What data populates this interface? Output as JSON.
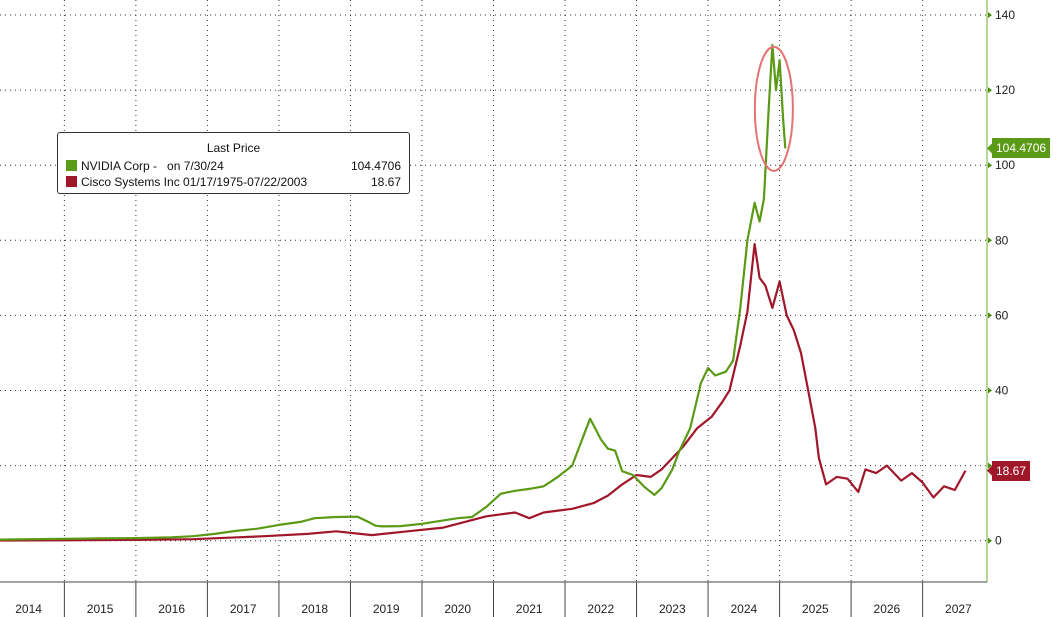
{
  "chart_data": {
    "type": "line",
    "legend": {
      "title": "Last Price",
      "position": "top-left",
      "entries": [
        {
          "series": "NVIDIA Corp -   on 7/30/24",
          "value": "104.4706",
          "color": "#5a9a16"
        },
        {
          "series": "Cisco Systems Inc 01/17/1975-07/22/2003",
          "value": "18.67",
          "color": "#a0172a"
        }
      ]
    },
    "x_tick_labels": [
      "2014",
      "2015",
      "2016",
      "2017",
      "2018",
      "2019",
      "2020",
      "2021",
      "2022",
      "2023",
      "2024",
      "2025",
      "2026",
      "2027"
    ],
    "y_tick_labels": [
      "0",
      "20",
      "40",
      "60",
      "80",
      "100",
      "120",
      "140"
    ],
    "ylim": [
      -11,
      144
    ],
    "xlim": [
      2013.6,
      2027.4
    ],
    "grid": true,
    "y_axis_side": "right",
    "last_value_tags": [
      {
        "label": "104.4706",
        "value": 104.47,
        "color": "#5a9a16"
      },
      {
        "label": "18.67",
        "value": 18.67,
        "color": "#a0172a"
      }
    ],
    "annotation": {
      "type": "circle",
      "note": "highlight around NVIDIA peak",
      "color": "#e57373"
    },
    "series": [
      {
        "name": "NVIDIA Corp -   on 7/30/24",
        "color": "#5a9a16",
        "x": [
          2013.6,
          2014.0,
          2014.5,
          2015.0,
          2015.5,
          2016.0,
          2016.3,
          2016.6,
          2016.9,
          2017.2,
          2017.5,
          2017.8,
          2018.0,
          2018.3,
          2018.6,
          2018.75,
          2018.85,
          2018.95,
          2019.2,
          2019.5,
          2019.8,
          2020.0,
          2020.2,
          2020.4,
          2020.6,
          2020.8,
          2021.0,
          2021.2,
          2021.4,
          2021.6,
          2021.75,
          2021.85,
          2021.92,
          2022.0,
          2022.1,
          2022.2,
          2022.3,
          2022.45,
          2022.6,
          2022.75,
          2022.85,
          2023.0,
          2023.1,
          2023.25,
          2023.4,
          2023.5,
          2023.6,
          2023.75,
          2023.85,
          2023.95,
          2024.05,
          2024.15,
          2024.22,
          2024.28,
          2024.35,
          2024.4,
          2024.45,
          2024.5,
          2024.55,
          2024.58
        ],
        "y": [
          0.3,
          0.4,
          0.5,
          0.6,
          0.7,
          0.9,
          1.2,
          1.8,
          2.6,
          3.2,
          4.2,
          5.0,
          6.0,
          6.3,
          6.4,
          5.0,
          4.0,
          3.8,
          3.9,
          4.5,
          5.4,
          6.0,
          6.3,
          9.0,
          12.5,
          13.3,
          13.8,
          14.5,
          17.0,
          20.0,
          27.5,
          32.5,
          30.0,
          27.0,
          24.5,
          24.0,
          18.5,
          17.5,
          14.5,
          12.2,
          14.0,
          19.0,
          24.0,
          30.0,
          42.0,
          46.0,
          44.0,
          45.0,
          48.0,
          62.0,
          80.0,
          90.0,
          85.0,
          91.0,
          116.0,
          132.0,
          120.0,
          128.0,
          112.0,
          104.47
        ]
      },
      {
        "name": "Cisco Systems Inc 01/17/1975-07/22/2003",
        "color": "#a0172a",
        "x": [
          2013.6,
          2014.5,
          2015.5,
          2016.3,
          2016.8,
          2017.3,
          2017.9,
          2018.3,
          2018.8,
          2019.3,
          2019.8,
          2020.1,
          2020.4,
          2020.8,
          2021.0,
          2021.2,
          2021.6,
          2021.9,
          2022.1,
          2022.3,
          2022.5,
          2022.7,
          2022.85,
          2023.0,
          2023.15,
          2023.35,
          2023.55,
          2023.7,
          2023.8,
          2023.95,
          2024.05,
          2024.15,
          2024.22,
          2024.3,
          2024.4,
          2024.5,
          2024.6,
          2024.7,
          2024.8,
          2024.9,
          2025.0,
          2025.05,
          2025.15,
          2025.3,
          2025.45,
          2025.6,
          2025.7,
          2025.85,
          2026.0,
          2026.2,
          2026.35,
          2026.5,
          2026.65,
          2026.8,
          2026.95,
          2027.1
        ],
        "y": [
          0.05,
          0.1,
          0.2,
          0.4,
          0.8,
          1.2,
          1.8,
          2.5,
          1.5,
          2.5,
          3.5,
          5.0,
          6.5,
          7.5,
          6.0,
          7.5,
          8.5,
          10.0,
          12.0,
          15.0,
          17.5,
          17.0,
          19.0,
          22.0,
          25.0,
          30.0,
          33.0,
          37.0,
          40.0,
          52.0,
          61.0,
          79.0,
          70.0,
          68.0,
          62.0,
          69.0,
          60.0,
          56.0,
          50.0,
          40.0,
          30.0,
          22.0,
          15.0,
          17.0,
          16.5,
          13.0,
          19.0,
          18.0,
          20.0,
          16.0,
          18.0,
          15.5,
          11.5,
          14.5,
          13.5,
          18.67
        ]
      }
    ]
  }
}
